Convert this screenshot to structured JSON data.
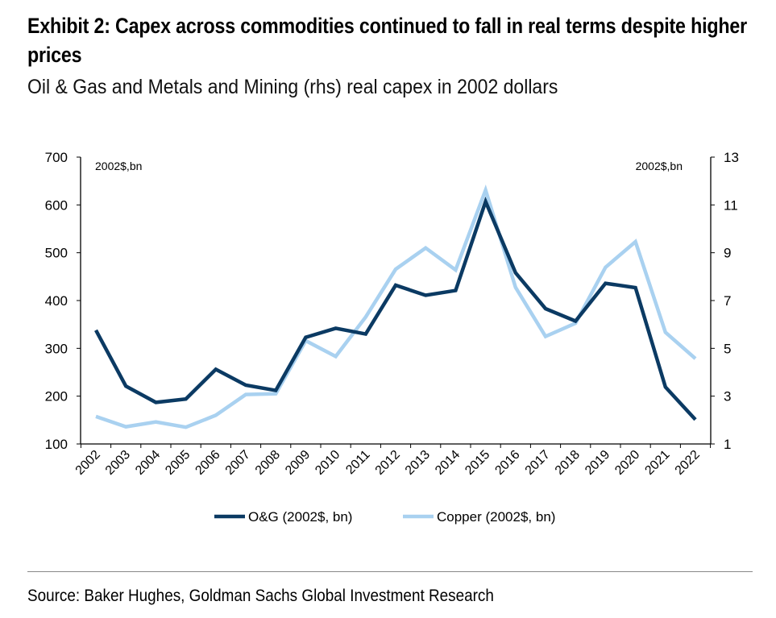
{
  "title": "Exhibit 2: Capex across commodities continued to fall in real terms despite higher prices",
  "subtitle": "Oil & Gas and Metals and Mining (rhs) real capex in 2002 dollars",
  "source": "Source: Baker Hughes, Goldman Sachs Global Investment Research",
  "chart_data": {
    "type": "line",
    "categories": [
      "2002",
      "2003",
      "2004",
      "2005",
      "2006",
      "2007",
      "2008",
      "2009",
      "2010",
      "2011",
      "2012",
      "2013",
      "2014",
      "2015",
      "2016",
      "2017",
      "2018",
      "2019",
      "2020",
      "2021",
      "2022"
    ],
    "left_axis": {
      "unit_label": "2002$,bn",
      "ylim": [
        100,
        700
      ],
      "ticks": [
        "100",
        "200",
        "300",
        "400",
        "500",
        "600",
        "700"
      ]
    },
    "right_axis": {
      "unit_label": "2002$,bn",
      "ylim": [
        1,
        13
      ],
      "ticks": [
        "1",
        "3",
        "5",
        "7",
        "9",
        "11",
        "13"
      ]
    },
    "legend_position": "bottom",
    "grid": false,
    "series": [
      {
        "name": "O&G (2002$, bn)",
        "axis": "left",
        "color": "#0b3a63",
        "values": [
          338,
          221,
          187,
          194,
          256,
          223,
          212,
          323,
          342,
          330,
          432,
          411,
          421,
          607,
          458,
          383,
          357,
          436,
          427,
          219,
          151
        ]
      },
      {
        "name": "Copper (2002$, bn)",
        "axis": "right",
        "color": "#a9d1f0",
        "values": [
          2.15,
          1.72,
          1.92,
          1.7,
          2.2,
          3.07,
          3.1,
          5.32,
          4.66,
          6.31,
          8.31,
          9.2,
          8.28,
          11.62,
          7.55,
          5.5,
          6.05,
          8.39,
          9.46,
          5.67,
          4.57
        ]
      }
    ]
  }
}
